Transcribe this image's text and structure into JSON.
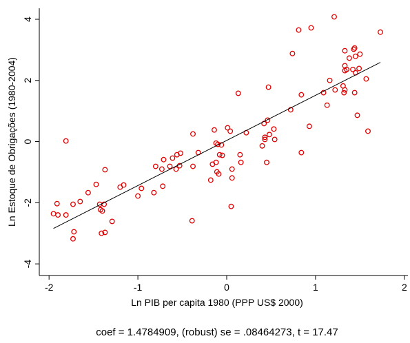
{
  "chart_data": {
    "type": "scatter",
    "x_label": "Ln PIB per capita 1980 (PPP US$ 2000)",
    "y_label": "Ln Estoque de Obrigações (1980-2004)",
    "note": "coef = 1.4784909, (robust) se = .08464273, t = 17.47",
    "xlim": [
      -2.11,
      2.04
    ],
    "ylim": [
      -4.38,
      4.36
    ],
    "xticks": [
      -2,
      -1,
      0,
      1,
      2
    ],
    "yticks": [
      -4,
      -2,
      0,
      2,
      4
    ],
    "points": {
      "color": "#e00000",
      "x": [
        -1.81,
        -1.91,
        -1.95,
        -1.9,
        -1.81,
        -1.73,
        -1.72,
        -1.73,
        -1.65,
        -1.56,
        -1.47,
        -1.43,
        -1.42,
        -1.4,
        -1.41,
        -1.38,
        -1.37,
        -1.37,
        -1.29,
        -1.2,
        -1.16,
        -1.0,
        -0.96,
        -0.82,
        -0.8,
        -0.72,
        -0.71,
        -0.73,
        -0.64,
        -0.61,
        -0.57,
        -0.56,
        -0.53,
        -0.52,
        -0.38,
        -0.39,
        -0.38,
        -0.32,
        -0.18,
        -0.16,
        -0.14,
        -0.12,
        -0.12,
        -0.11,
        -0.09,
        -0.08,
        -0.1,
        -0.06,
        -0.05,
        0.01,
        0.04,
        0.05,
        0.06,
        0.06,
        0.13,
        0.15,
        0.16,
        0.22,
        0.42,
        0.45,
        0.4,
        0.43,
        0.43,
        0.46,
        0.48,
        0.47,
        0.53,
        0.54,
        0.72,
        0.74,
        0.81,
        0.84,
        0.84,
        0.93,
        0.95,
        1.09,
        1.13,
        1.16,
        1.21,
        1.22,
        1.31,
        1.33,
        1.33,
        1.33,
        1.32,
        1.33,
        1.35,
        1.38,
        1.42,
        1.43,
        1.44,
        1.44,
        1.45,
        1.45,
        1.47,
        1.49,
        1.5,
        1.57,
        1.59,
        1.73
      ],
      "values": [
        0.02,
        -2.03,
        -2.36,
        -2.4,
        -2.4,
        -2.05,
        -2.95,
        -3.18,
        -1.96,
        -1.67,
        -1.4,
        -2.05,
        -2.23,
        -2.27,
        -3.0,
        -2.05,
        -2.97,
        -0.92,
        -2.61,
        -1.49,
        -1.42,
        -1.78,
        -1.53,
        -1.67,
        -0.81,
        -1.46,
        -0.59,
        -0.9,
        -0.81,
        -0.54,
        -0.9,
        -0.43,
        -0.79,
        -0.38,
        -0.81,
        -2.59,
        0.25,
        -0.36,
        -1.26,
        -0.74,
        0.38,
        -0.68,
        -0.05,
        -0.99,
        -1.06,
        -0.43,
        -0.09,
        -0.11,
        -0.45,
        0.45,
        0.34,
        -2.12,
        -0.9,
        -1.19,
        1.58,
        -0.43,
        -0.68,
        0.29,
        0.59,
        -0.68,
        -0.14,
        0.07,
        0.14,
        0.7,
        0.23,
        1.78,
        0.41,
        0.07,
        1.04,
        2.88,
        3.65,
        1.53,
        -0.36,
        0.5,
        3.72,
        1.6,
        1.19,
        2.0,
        4.08,
        1.69,
        1.82,
        2.97,
        2.32,
        2.48,
        1.6,
        1.69,
        2.36,
        2.73,
        2.36,
        3.02,
        3.06,
        1.6,
        2.25,
        2.79,
        0.86,
        2.39,
        2.86,
        2.05,
        0.34,
        3.58
      ]
    },
    "fit": {
      "color": "#000000",
      "x": [
        -1.95,
        1.73
      ],
      "values": [
        -2.84,
        2.59
      ]
    }
  }
}
